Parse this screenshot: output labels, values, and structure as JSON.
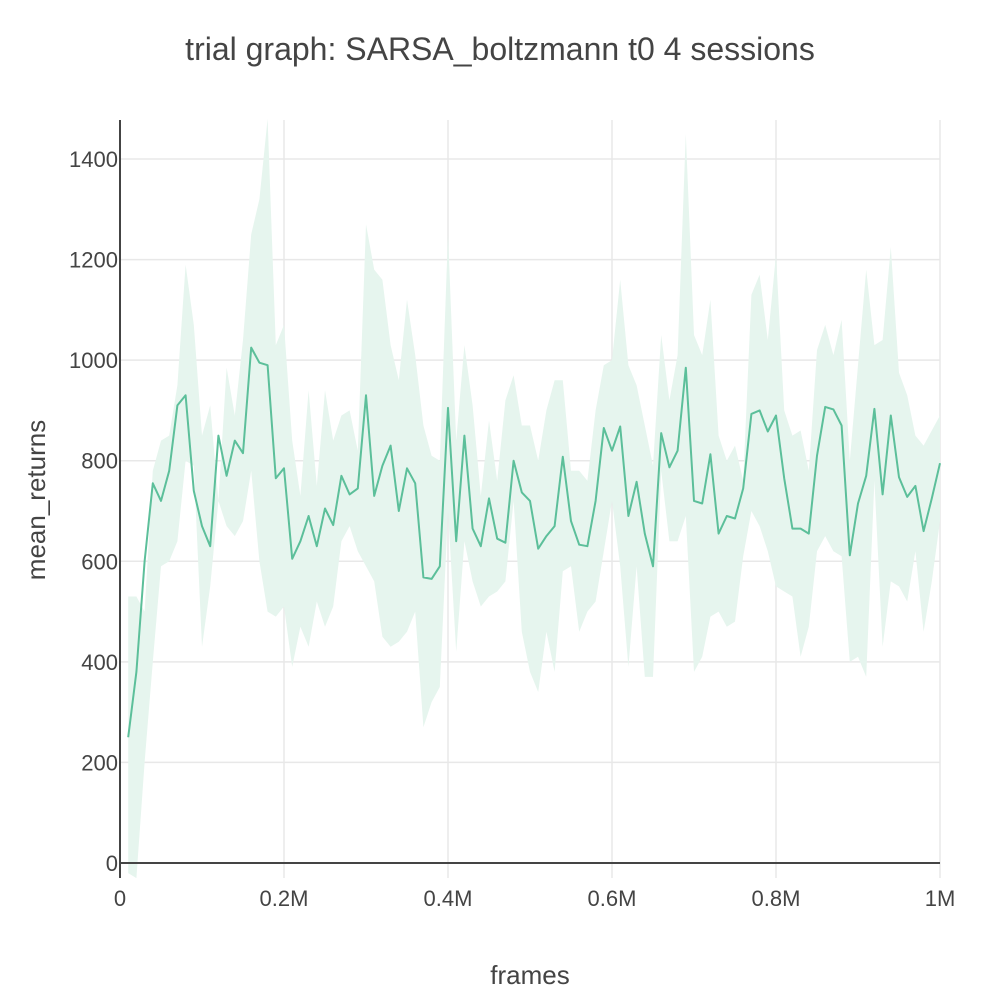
{
  "chart_data": {
    "type": "line",
    "title": "trial graph: SARSA_boltzmann t0 4 sessions",
    "xlabel": "frames",
    "ylabel": "mean_returns",
    "xlim": [
      0,
      1000000
    ],
    "ylim": [
      -30,
      1480
    ],
    "grid": true,
    "legend": "none",
    "x_ticks": [
      {
        "value": 0,
        "label": "0"
      },
      {
        "value": 200000,
        "label": "0.2M"
      },
      {
        "value": 400000,
        "label": "0.4M"
      },
      {
        "value": 600000,
        "label": "0.6M"
      },
      {
        "value": 800000,
        "label": "0.8M"
      },
      {
        "value": 1000000,
        "label": "1M"
      }
    ],
    "y_ticks": [
      {
        "value": 0,
        "label": "0"
      },
      {
        "value": 200,
        "label": "200"
      },
      {
        "value": 400,
        "label": "400"
      },
      {
        "value": 600,
        "label": "600"
      },
      {
        "value": 800,
        "label": "800"
      },
      {
        "value": 1000,
        "label": "1000"
      },
      {
        "value": 1200,
        "label": "1200"
      },
      {
        "value": 1400,
        "label": "1400"
      }
    ],
    "x": [
      10000,
      20000,
      30000,
      40000,
      50000,
      60000,
      70000,
      80000,
      90000,
      100000,
      110000,
      120000,
      130000,
      140000,
      150000,
      160000,
      170000,
      180000,
      190000,
      200000,
      210000,
      220000,
      230000,
      240000,
      250000,
      260000,
      270000,
      280000,
      290000,
      300000,
      310000,
      320000,
      330000,
      340000,
      350000,
      360000,
      370000,
      380000,
      390000,
      400000,
      410000,
      420000,
      430000,
      440000,
      450000,
      460000,
      470000,
      480000,
      490000,
      500000,
      510000,
      520000,
      530000,
      540000,
      550000,
      560000,
      570000,
      580000,
      590000,
      600000,
      610000,
      620000,
      630000,
      640000,
      650000,
      660000,
      670000,
      680000,
      690000,
      700000,
      710000,
      720000,
      730000,
      740000,
      750000,
      760000,
      770000,
      780000,
      790000,
      800000,
      810000,
      820000,
      830000,
      840000,
      850000,
      860000,
      870000,
      880000,
      890000,
      900000,
      910000,
      920000,
      930000,
      940000,
      950000,
      960000,
      970000,
      980000,
      990000,
      1000000
    ],
    "series": [
      {
        "values": [
          250,
          380,
          600,
          755,
          720,
          780,
          910,
          930,
          740,
          670,
          630,
          850,
          770,
          840,
          815,
          1025,
          995,
          990,
          765,
          785,
          605,
          640,
          690,
          630,
          705,
          672,
          770,
          733,
          745,
          930,
          730,
          790,
          830,
          700,
          785,
          755,
          568,
          565,
          590,
          905,
          640,
          850,
          665,
          630,
          725,
          645,
          637,
          800,
          737,
          720,
          625,
          650,
          670,
          808,
          680,
          633,
          630,
          720,
          865,
          820,
          868,
          690,
          758,
          655,
          590,
          855,
          787,
          820,
          985,
          720,
          715,
          813,
          655,
          690,
          685,
          745,
          893,
          900,
          858,
          890,
          765,
          665,
          665,
          655,
          810,
          907,
          902,
          870,
          612,
          715,
          770,
          903,
          733,
          890,
          767,
          728,
          750,
          660,
          725,
          795
        ],
        "upper": [
          530,
          530,
          500,
          780,
          840,
          850,
          950,
          1190,
          1070,
          850,
          910,
          720,
          985,
          890,
          1040,
          1250,
          1320,
          1480,
          1030,
          1070,
          840,
          730,
          940,
          750,
          940,
          840,
          890,
          900,
          820,
          1270,
          1180,
          1160,
          1030,
          960,
          1120,
          1010,
          870,
          810,
          800,
          1250,
          840,
          1030,
          910,
          730,
          880,
          760,
          920,
          970,
          870,
          870,
          800,
          900,
          960,
          960,
          780,
          780,
          760,
          900,
          990,
          1000,
          1160,
          990,
          950,
          870,
          790,
          1050,
          920,
          1010,
          1450,
          1050,
          1010,
          1120,
          850,
          800,
          830,
          760,
          1130,
          1170,
          1040,
          1210,
          900,
          850,
          860,
          780,
          1020,
          1070,
          1010,
          1080,
          800,
          990,
          1180,
          1030,
          1040,
          1225,
          975,
          930,
          850,
          830,
          860,
          890
        ],
        "lower": [
          -20,
          -30,
          200,
          400,
          590,
          600,
          640,
          800,
          790,
          430,
          550,
          720,
          670,
          650,
          680,
          780,
          600,
          500,
          490,
          510,
          390,
          470,
          430,
          520,
          470,
          510,
          640,
          670,
          620,
          590,
          560,
          450,
          430,
          440,
          460,
          500,
          270,
          320,
          350,
          700,
          420,
          640,
          560,
          510,
          530,
          540,
          560,
          720,
          460,
          380,
          340,
          460,
          380,
          580,
          590,
          460,
          500,
          520,
          620,
          720,
          590,
          390,
          590,
          370,
          370,
          780,
          640,
          640,
          690,
          380,
          410,
          490,
          500,
          470,
          480,
          610,
          700,
          670,
          620,
          550,
          540,
          530,
          410,
          470,
          620,
          650,
          620,
          610,
          400,
          410,
          370,
          760,
          430,
          560,
          550,
          520,
          620,
          460,
          560,
          680
        ]
      }
    ]
  },
  "style": {
    "line_color": "#5cbf9a",
    "band_color": "#e6f5ee",
    "grid_color": "#e8e8e8",
    "axis_color": "#444444"
  }
}
